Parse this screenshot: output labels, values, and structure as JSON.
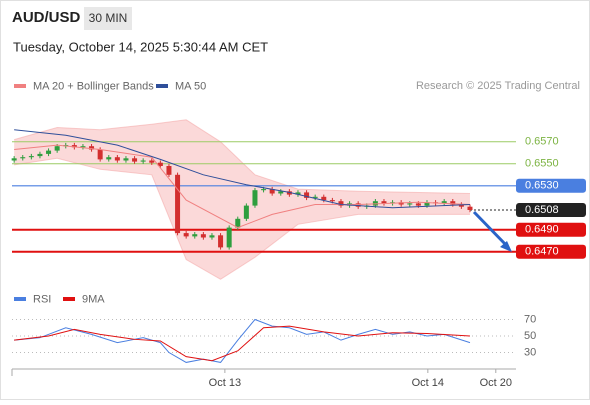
{
  "chart_data": {
    "type": "candlestick",
    "title": "AUD/USD",
    "interval": "30 MIN",
    "date": "Tuesday, October 14, 2025 5:30:44 AM CET",
    "source": "Research © 2025 Trading Central",
    "xlim": [
      -0.25,
      58.35
    ],
    "xticks": [
      {
        "value": 24.5,
        "label": "Oct 13"
      },
      {
        "value": 48.1,
        "label": "Oct 14"
      },
      {
        "value": 56,
        "label": "Oct 20"
      }
    ],
    "ylim": [
      0.6445,
      0.6608
    ],
    "up_color": "#2e9e3e",
    "down_color": "#d32f2f",
    "candles": {
      "x": [
        0,
        1,
        2,
        3,
        4,
        5,
        6,
        7,
        8,
        9,
        10,
        11,
        12,
        13,
        14,
        15,
        16,
        17,
        18,
        19,
        20,
        21,
        22,
        23,
        24,
        25,
        26,
        27,
        28,
        29,
        30,
        31,
        32,
        33,
        34,
        35,
        36,
        37,
        38,
        39,
        40,
        41,
        42,
        43,
        44,
        45,
        46,
        47,
        48,
        49,
        50,
        51,
        52,
        53
      ],
      "open": [
        0.6553,
        0.6555,
        0.6556,
        0.6557,
        0.6559,
        0.6562,
        0.6566,
        0.6567,
        0.6565,
        0.6566,
        0.6563,
        0.6554,
        0.6556,
        0.6553,
        0.6555,
        0.6552,
        0.6553,
        0.6551,
        0.6548,
        0.654,
        0.6487,
        0.6484,
        0.6486,
        0.6483,
        0.6485,
        0.6474,
        0.6492,
        0.65,
        0.6512,
        0.6526,
        0.6527,
        0.6523,
        0.6525,
        0.6522,
        0.6524,
        0.6519,
        0.652,
        0.6517,
        0.6516,
        0.6512,
        0.6514,
        0.6511,
        0.6512,
        0.6516,
        0.6514,
        0.6515,
        0.6513,
        0.6514,
        0.6512,
        0.6515,
        0.6514,
        0.6516,
        0.6513,
        0.6511
      ],
      "high": [
        0.6557,
        0.6558,
        0.6559,
        0.6561,
        0.6564,
        0.6568,
        0.6569,
        0.6569,
        0.6568,
        0.6568,
        0.6565,
        0.6558,
        0.6558,
        0.6557,
        0.6557,
        0.6555,
        0.6555,
        0.6553,
        0.655,
        0.6542,
        0.6489,
        0.6488,
        0.6488,
        0.6487,
        0.6487,
        0.6494,
        0.6502,
        0.6514,
        0.6528,
        0.6529,
        0.6529,
        0.6527,
        0.6527,
        0.6526,
        0.6526,
        0.6522,
        0.6522,
        0.6519,
        0.6518,
        0.6516,
        0.6516,
        0.6514,
        0.6518,
        0.6518,
        0.6517,
        0.6517,
        0.6516,
        0.6516,
        0.6517,
        0.6517,
        0.6518,
        0.6518,
        0.6515,
        0.6513
      ],
      "low": [
        0.6551,
        0.6553,
        0.6554,
        0.6555,
        0.6557,
        0.656,
        0.6564,
        0.6563,
        0.6563,
        0.6561,
        0.6552,
        0.6552,
        0.6551,
        0.6551,
        0.655,
        0.655,
        0.6549,
        0.6546,
        0.6538,
        0.6485,
        0.6482,
        0.6482,
        0.6481,
        0.6481,
        0.6472,
        0.6472,
        0.649,
        0.6498,
        0.651,
        0.6524,
        0.6521,
        0.6521,
        0.652,
        0.652,
        0.6517,
        0.6517,
        0.6515,
        0.6514,
        0.651,
        0.651,
        0.6509,
        0.6509,
        0.651,
        0.6512,
        0.6512,
        0.6511,
        0.6511,
        0.651,
        0.651,
        0.6512,
        0.6512,
        0.6511,
        0.6509,
        0.6506
      ],
      "close": [
        0.6555,
        0.6556,
        0.6557,
        0.6559,
        0.6562,
        0.6566,
        0.6567,
        0.6565,
        0.6566,
        0.6563,
        0.6554,
        0.6556,
        0.6553,
        0.6555,
        0.6552,
        0.6553,
        0.6551,
        0.6548,
        0.654,
        0.6487,
        0.6484,
        0.6486,
        0.6483,
        0.6485,
        0.6474,
        0.6492,
        0.65,
        0.6512,
        0.6526,
        0.6527,
        0.6523,
        0.6525,
        0.6522,
        0.6524,
        0.6519,
        0.652,
        0.6517,
        0.6516,
        0.6512,
        0.6514,
        0.6511,
        0.6512,
        0.6516,
        0.6514,
        0.6515,
        0.6513,
        0.6514,
        0.6512,
        0.6515,
        0.6514,
        0.6516,
        0.6513,
        0.6511,
        0.6508
      ]
    },
    "band": {
      "name": "MA 20 + Bollinger Bands",
      "color": "#f4a0a0",
      "x": [
        0,
        5,
        10,
        16,
        20,
        24,
        28,
        33,
        40,
        53
      ],
      "upper": [
        0.6572,
        0.6583,
        0.6581,
        0.6586,
        0.659,
        0.657,
        0.654,
        0.6527,
        0.6525,
        0.6523
      ],
      "lower": [
        0.6549,
        0.6555,
        0.6545,
        0.654,
        0.6463,
        0.6445,
        0.6465,
        0.6495,
        0.6504,
        0.6504
      ]
    },
    "series": [
      {
        "name": "MA 20 + Bollinger Bands",
        "color": "#f08080",
        "x": [
          0,
          5,
          10,
          16,
          20,
          26,
          30,
          35,
          40,
          47,
          53
        ],
        "values": [
          0.6563,
          0.6567,
          0.6563,
          0.6556,
          0.6517,
          0.6492,
          0.6504,
          0.6513,
          0.6513,
          0.6515,
          0.6513
        ]
      },
      {
        "name": "MA 50",
        "color": "#2f4f9a",
        "x": [
          0,
          6,
          12,
          17,
          22,
          27,
          32,
          38,
          44,
          53
        ],
        "values": [
          0.6581,
          0.6576,
          0.6567,
          0.6554,
          0.654,
          0.6531,
          0.6524,
          0.6513,
          0.651,
          0.6513
        ]
      }
    ],
    "levels": [
      {
        "value": 0.657,
        "label": "0.6570",
        "color": "#9ccc65",
        "box": false,
        "dash": false
      },
      {
        "value": 0.655,
        "label": "0.6550",
        "color": "#9ccc65",
        "box": false,
        "dash": false
      },
      {
        "value": 0.653,
        "label": "0.6530",
        "color": "#4a7fe0",
        "box": true,
        "dash": false
      },
      {
        "value": 0.6508,
        "label": "0.6508",
        "color": "#222222",
        "box": true,
        "dash": true
      },
      {
        "value": 0.649,
        "label": "0.6490",
        "color": "#e01010",
        "box": true,
        "dash": false
      },
      {
        "value": 0.647,
        "label": "0.6470",
        "color": "#e01010",
        "box": true,
        "dash": false
      }
    ],
    "rsi": {
      "ylim": [
        15,
        82
      ],
      "yticks": [
        70,
        50,
        30
      ],
      "series": [
        {
          "name": "RSI",
          "color": "#4a7fe0",
          "x": [
            0,
            3,
            6,
            9,
            12,
            15,
            17,
            18,
            20,
            22,
            24,
            26,
            28,
            30,
            32,
            34,
            36,
            38,
            40,
            42,
            44,
            46,
            48,
            50,
            53
          ],
          "values": [
            45,
            48,
            60,
            52,
            42,
            48,
            42,
            30,
            18,
            22,
            18,
            45,
            70,
            62,
            60,
            52,
            55,
            45,
            52,
            58,
            52,
            55,
            50,
            52,
            42
          ]
        },
        {
          "name": "9MA",
          "color": "#e01010",
          "x": [
            0,
            4,
            7,
            10,
            14,
            17,
            20,
            23,
            26,
            29,
            32,
            36,
            40,
            44,
            48,
            53
          ],
          "values": [
            45,
            50,
            58,
            52,
            46,
            44,
            25,
            20,
            32,
            60,
            62,
            55,
            50,
            54,
            53,
            50
          ]
        }
      ]
    }
  }
}
